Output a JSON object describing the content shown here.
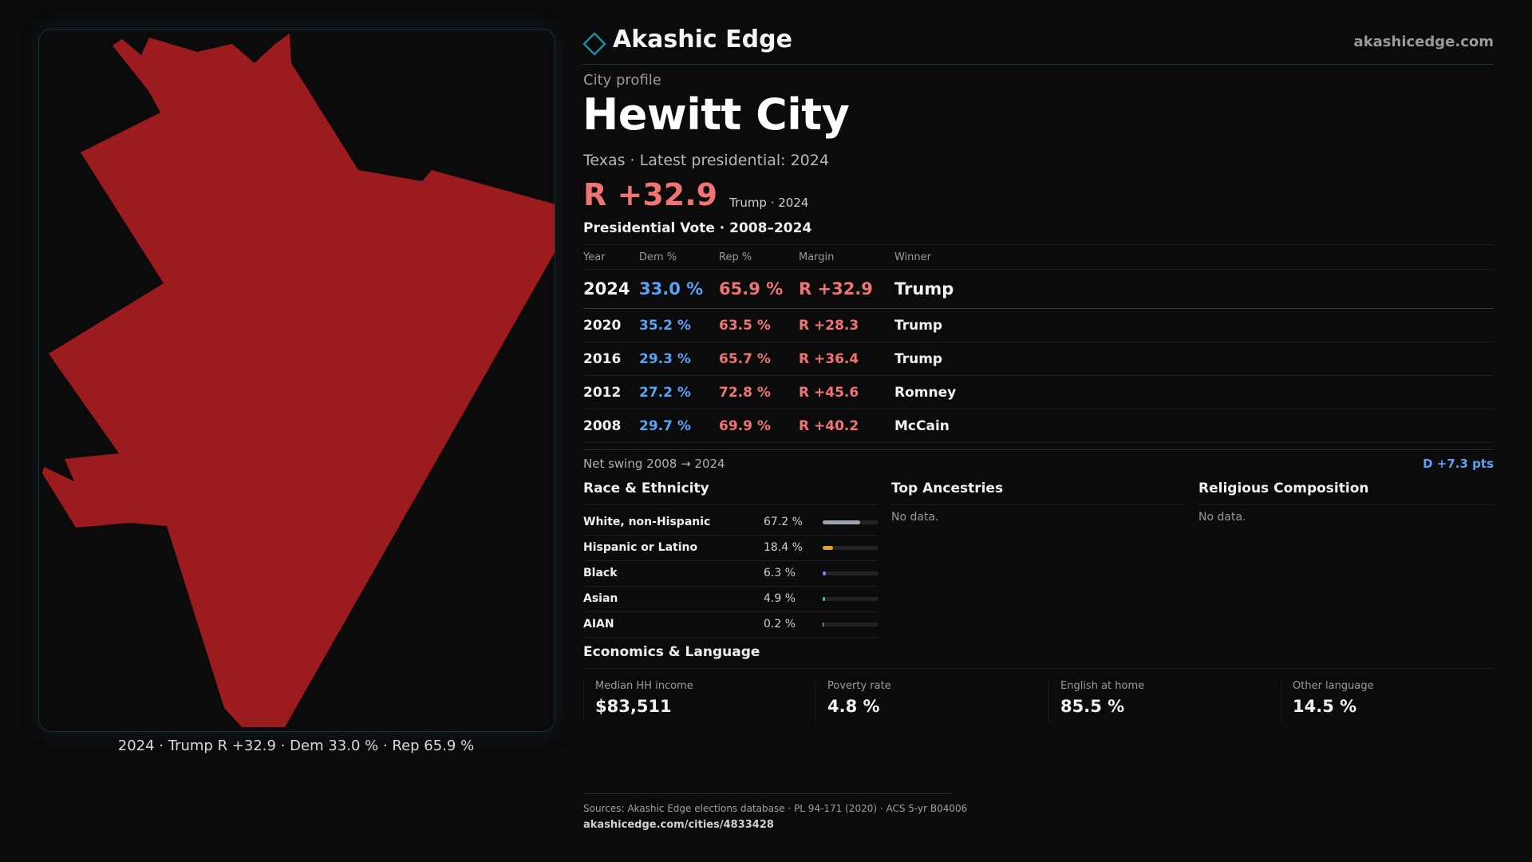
{
  "brand": {
    "name": "Akashic Edge",
    "site": "akashicedge.com"
  },
  "map": {
    "caption": "2024 · Trump R +32.9 · Dem 33.0 % · Rep 65.9 %",
    "fill_color": "#9b1b1e"
  },
  "profile": {
    "eyebrow": "City profile",
    "title": "Hewitt City",
    "subtitle": "Texas · Latest presidential: 2024",
    "headline_margin": "R +32.9",
    "headline_sub": "Trump · 2024"
  },
  "vote_table": {
    "title": "Presidential Vote · 2008–2024",
    "headers": [
      "Year",
      "Dem %",
      "Rep %",
      "Margin",
      "Winner"
    ],
    "rows": [
      {
        "year": "2024",
        "dem": "33.0 %",
        "rep": "65.9 %",
        "margin": "R +32.9",
        "winner": "Trump"
      },
      {
        "year": "2020",
        "dem": "35.2 %",
        "rep": "63.5 %",
        "margin": "R +28.3",
        "winner": "Trump"
      },
      {
        "year": "2016",
        "dem": "29.3 %",
        "rep": "65.7 %",
        "margin": "R +36.4",
        "winner": "Trump"
      },
      {
        "year": "2012",
        "dem": "27.2 %",
        "rep": "72.8 %",
        "margin": "R +45.6",
        "winner": "Romney"
      },
      {
        "year": "2008",
        "dem": "29.7 %",
        "rep": "69.9 %",
        "margin": "R +40.2",
        "winner": "McCain"
      }
    ]
  },
  "swing": {
    "label": "Net swing 2008 → 2024",
    "value": "D +7.3 pts"
  },
  "race": {
    "title": "Race & Ethnicity",
    "rows": [
      {
        "label": "White, non-Hispanic",
        "pct": "67.2 %",
        "fraction": 0.672,
        "color": "#9ca3af"
      },
      {
        "label": "Hispanic or Latino",
        "pct": "18.4 %",
        "fraction": 0.184,
        "color": "#e3a22b"
      },
      {
        "label": "Black",
        "pct": "6.3 %",
        "fraction": 0.063,
        "color": "#8b7cf0"
      },
      {
        "label": "Asian",
        "pct": "4.9 %",
        "fraction": 0.049,
        "color": "#34c98a"
      },
      {
        "label": "AIAN",
        "pct": "0.2 %",
        "fraction": 0.002,
        "color": "#d1d5db"
      }
    ]
  },
  "ancestries": {
    "title": "Top Ancestries",
    "empty": "No data."
  },
  "religion": {
    "title": "Religious Composition",
    "empty": "No data."
  },
  "economics": {
    "title": "Economics & Language",
    "stats": [
      {
        "label": "Median HH income",
        "value": "$83,511"
      },
      {
        "label": "Poverty rate",
        "value": "4.8 %"
      },
      {
        "label": "English at home",
        "value": "85.5 %"
      },
      {
        "label": "Other language",
        "value": "14.5 %"
      }
    ]
  },
  "sources": {
    "text": "Sources: Akashic Edge elections database · PL 94-171 (2020) · ACS 5-yr B04006",
    "url": "akashicedge.com/cities/4833428"
  }
}
